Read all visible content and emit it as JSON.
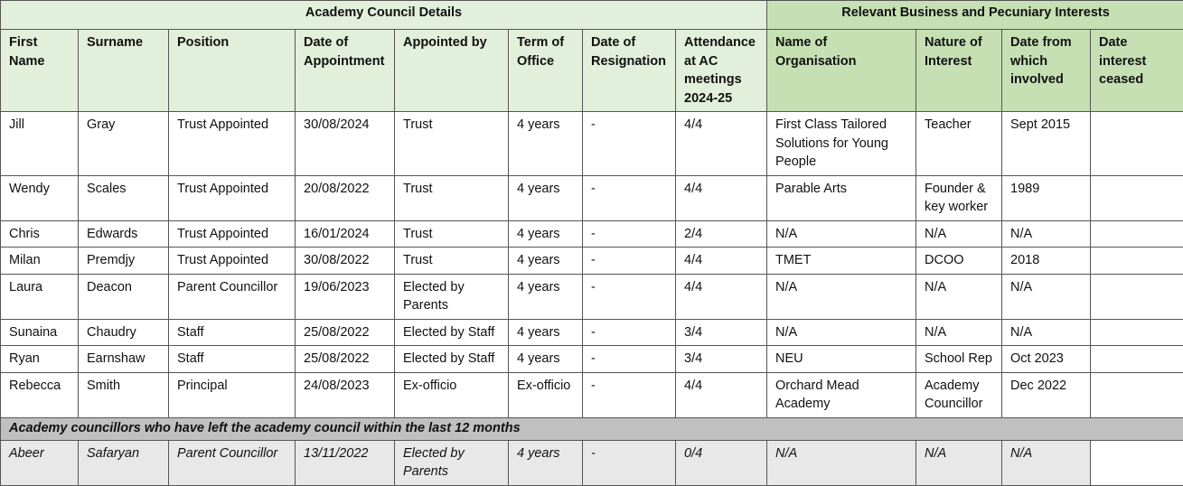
{
  "table": {
    "group_headers": [
      "Academy Council Details",
      "Relevant Business and Pecuniary Interests"
    ],
    "columns": [
      "First Name",
      "Surname",
      "Position",
      "Date of Appointment",
      "Appointed by",
      "Term of Office",
      "Date of Resignation",
      "Attendance at AC meetings 2024-25",
      "Name of Organisation",
      "Nature of Interest",
      "Date from which involved",
      "Date interest ceased"
    ],
    "rows": [
      [
        "Jill",
        "Gray",
        "Trust Appointed",
        "30/08/2024",
        "Trust",
        "4 years",
        "-",
        "4/4",
        "First Class Tailored Solutions for Young People",
        "Teacher",
        "Sept 2015"
      ],
      [
        "Wendy",
        "Scales",
        "Trust Appointed",
        "20/08/2022",
        "Trust",
        "4 years",
        "-",
        "4/4",
        "Parable Arts",
        "Founder & key worker",
        "1989"
      ],
      [
        "Chris",
        "Edwards",
        "Trust Appointed",
        "16/01/2024",
        "Trust",
        "4 years",
        "-",
        "2/4",
        "N/A",
        "N/A",
        "N/A"
      ],
      [
        "Milan",
        "Premdjy",
        "Trust Appointed",
        "30/08/2022",
        "Trust",
        "4 years",
        "-",
        "4/4",
        "TMET",
        "DCOO",
        "2018"
      ],
      [
        "Laura",
        "Deacon",
        "Parent Councillor",
        "19/06/2023",
        "Elected by Parents",
        "4 years",
        "-",
        "4/4",
        "N/A",
        "N/A",
        "N/A"
      ],
      [
        "Sunaina",
        "Chaudry",
        "Staff",
        "25/08/2022",
        "Elected by Staff",
        "4 years",
        "-",
        "3/4",
        "N/A",
        "N/A",
        "N/A"
      ],
      [
        "Ryan",
        "Earnshaw",
        "Staff",
        "25/08/2022",
        "Elected by Staff",
        "4 years",
        "-",
        "3/4",
        "NEU",
        "School Rep",
        "Oct 2023"
      ],
      [
        "Rebecca",
        "Smith",
        "Principal",
        "24/08/2023",
        "Ex-officio",
        "Ex-officio",
        "-",
        "4/4",
        "Orchard Mead Academy",
        "Academy Councillor",
        "Dec 2022"
      ]
    ],
    "section_label": "Academy councillors who have left the academy council within the last 12 months",
    "former_rows": [
      [
        "Abeer",
        "Safaryan",
        "Parent Councillor",
        "13/11/2022",
        "Elected by Parents",
        "4 years",
        "-",
        "0/4",
        "N/A",
        "N/A",
        "N/A"
      ]
    ]
  }
}
